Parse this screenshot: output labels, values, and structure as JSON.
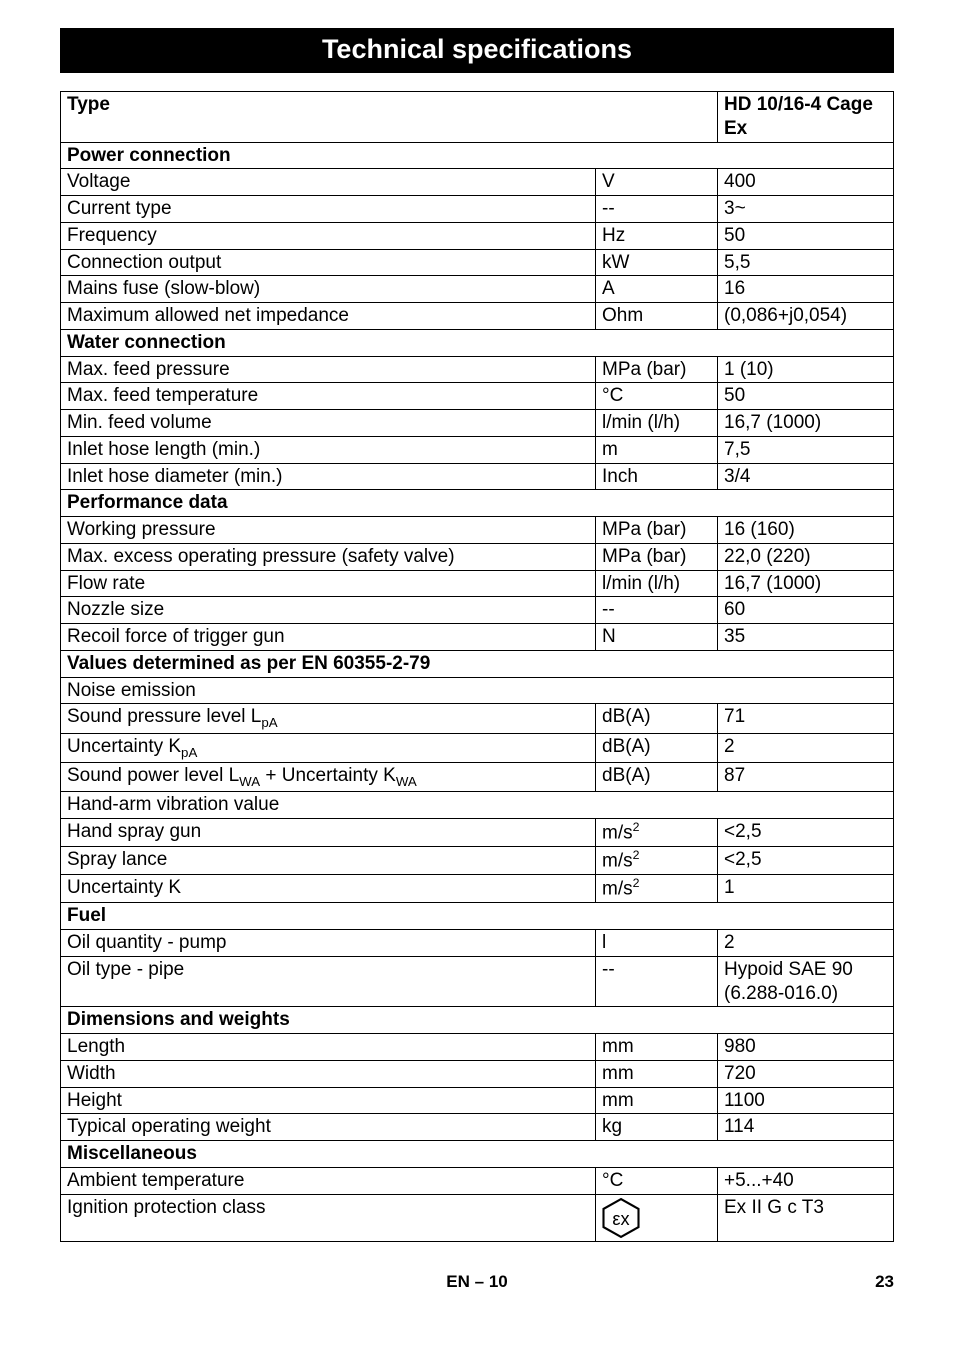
{
  "title": "Technical specifications",
  "header": {
    "type_label": "Type",
    "model": "HD 10/16-4 Cage Ex"
  },
  "sections": [
    {
      "heading": "Power connection",
      "rows": [
        {
          "label": "Voltage",
          "unit": "V",
          "value": "400"
        },
        {
          "label": "Current type",
          "unit": "--",
          "value": "3~"
        },
        {
          "label": "Frequency",
          "unit": "Hz",
          "value": "50"
        },
        {
          "label": "Connection output",
          "unit": "kW",
          "value": "5,5"
        },
        {
          "label": "Mains fuse (slow-blow)",
          "unit": "A",
          "value": "16"
        },
        {
          "label": "Maximum allowed net impedance",
          "unit": "Ohm",
          "value": "(0,086+j0,054)"
        }
      ]
    },
    {
      "heading": "Water connection",
      "rows": [
        {
          "label": "Max. feed pressure",
          "unit": "MPa (bar)",
          "value": "1 (10)"
        },
        {
          "label": "Max. feed temperature",
          "unit": "°C",
          "value": "50"
        },
        {
          "label": "Min. feed volume",
          "unit": "l/min (l/h)",
          "value": "16,7 (1000)"
        },
        {
          "label": "Inlet hose length (min.)",
          "unit": "m",
          "value": "7,5"
        },
        {
          "label": "Inlet hose diameter (min.)",
          "unit": "Inch",
          "value": "3/4"
        }
      ]
    },
    {
      "heading": "Performance data",
      "rows": [
        {
          "label": "Working pressure",
          "unit": "MPa (bar)",
          "value": "16 (160)"
        },
        {
          "label": "Max. excess operating pressure (safety valve)",
          "unit": "MPa (bar)",
          "value": "22,0 (220)"
        },
        {
          "label": "Flow rate",
          "unit": "l/min (l/h)",
          "value": "16,7 (1000)"
        },
        {
          "label": "Nozzle size",
          "unit": "--",
          "value": "60"
        },
        {
          "label": "Recoil force of trigger gun",
          "unit": "N",
          "value": "35"
        }
      ]
    },
    {
      "heading": "Values determined as per EN 60355-2-79",
      "rows": [
        {
          "label": "Noise emission",
          "unit": "",
          "value": "",
          "span": true
        },
        {
          "label_html": "Sound pressure level L<sub>pA</sub>",
          "unit": "dB(A)",
          "value": "71"
        },
        {
          "label_html": "Uncertainty K<sub>pA</sub>",
          "unit": "dB(A)",
          "value": "2"
        },
        {
          "label_html": "Sound power level L<sub>WA</sub> + Uncertainty K<sub>WA</sub>",
          "unit": "dB(A)",
          "value": "87"
        },
        {
          "label": "Hand-arm vibration value",
          "unit": "",
          "value": "",
          "span": true
        },
        {
          "label": "Hand spray gun",
          "unit_html": "m/s<sup style='font-size:0.65em'>2</sup>",
          "value": "<2,5"
        },
        {
          "label": "Spray lance",
          "unit_html": "m/s<sup style='font-size:0.65em'>2</sup>",
          "value": "<2,5"
        },
        {
          "label": "Uncertainty K",
          "unit_html": "m/s<sup style='font-size:0.65em'>2</sup>",
          "value": "1"
        }
      ]
    },
    {
      "heading": "Fuel",
      "rows": [
        {
          "label": "Oil quantity - pump",
          "unit": "l",
          "value": "2"
        },
        {
          "label": "Oil type - pipe",
          "unit": "--",
          "value": "Hypoid SAE 90 (6.288-016.0)"
        }
      ]
    },
    {
      "heading": "Dimensions and weights",
      "rows": [
        {
          "label": "Length",
          "unit": "mm",
          "value": "980"
        },
        {
          "label": "Width",
          "unit": "mm",
          "value": "720"
        },
        {
          "label": "Height",
          "unit": "mm",
          "value": "1100"
        },
        {
          "label": "Typical operating weight",
          "unit": "kg",
          "value": "114"
        }
      ]
    },
    {
      "heading": "Miscellaneous",
      "rows": [
        {
          "label": "Ambient temperature",
          "unit": "°C",
          "value": "+5...+40"
        },
        {
          "label": "Ignition protection class",
          "unit_icon": "ex",
          "value": "Ex II G c T3"
        }
      ]
    }
  ],
  "footer": {
    "lang": "EN",
    "page_in_section": "10",
    "page_number": "23"
  },
  "colors": {
    "text": "#000000",
    "background": "#ffffff",
    "title_bar_bg": "#000000",
    "title_bar_fg": "#ffffff",
    "border": "#000000"
  }
}
